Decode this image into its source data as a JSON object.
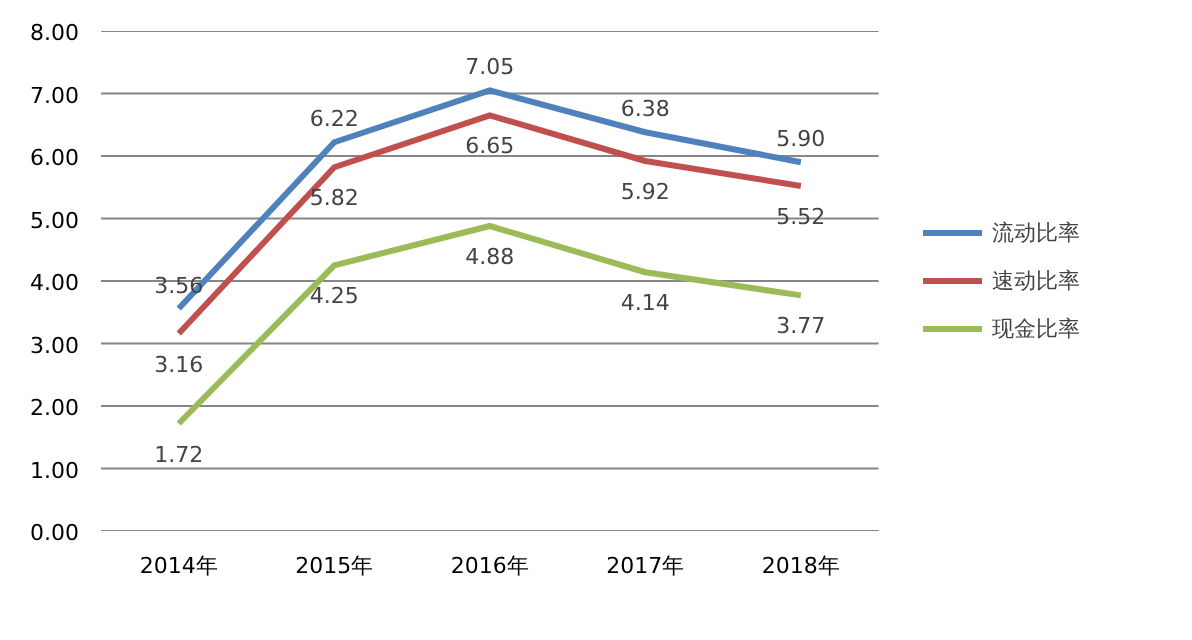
{
  "chart_data": {
    "type": "line",
    "categories": [
      "2014年",
      "2015年",
      "2016年",
      "2017年",
      "2018年"
    ],
    "series": [
      {
        "name": "流动比率",
        "color": "#4f81bd",
        "values": [
          3.56,
          6.22,
          7.05,
          6.38,
          5.9
        ],
        "value_labels": [
          "3.56",
          "6.22",
          "7.05",
          "6.38",
          "5.90"
        ]
      },
      {
        "name": "速动比率",
        "color": "#c0504d",
        "values": [
          3.16,
          5.82,
          6.65,
          5.92,
          5.52
        ],
        "value_labels": [
          "3.16",
          "5.82",
          "6.65",
          "5.92",
          "5.52"
        ]
      },
      {
        "name": "现金比率",
        "color": "#9bbb59",
        "values": [
          1.72,
          4.25,
          4.88,
          4.14,
          3.77
        ],
        "value_labels": [
          "1.72",
          "4.25",
          "4.88",
          "4.14",
          "3.77"
        ]
      }
    ],
    "ylim": [
      0,
      8
    ],
    "yticks": [
      {
        "value": 0,
        "label": "0.00"
      },
      {
        "value": 1,
        "label": "1.00"
      },
      {
        "value": 2,
        "label": "2.00"
      },
      {
        "value": 3,
        "label": "3.00"
      },
      {
        "value": 4,
        "label": "4.00"
      },
      {
        "value": 5,
        "label": "5.00"
      },
      {
        "value": 6,
        "label": "6.00"
      },
      {
        "value": 7,
        "label": "7.00"
      },
      {
        "value": 8,
        "label": "8.00"
      }
    ],
    "grid": "y",
    "legend": "right",
    "marker": "none",
    "line_style": "solid"
  }
}
